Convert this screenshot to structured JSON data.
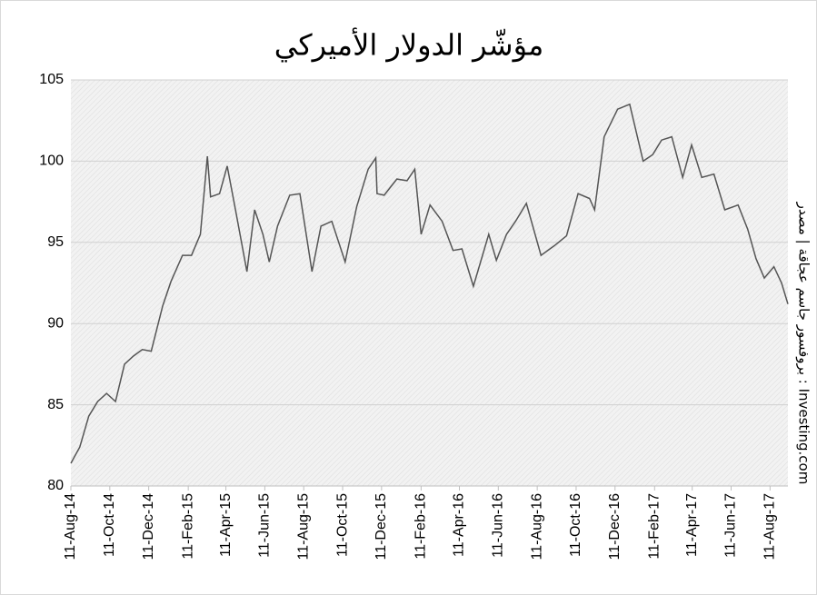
{
  "chart_data": {
    "type": "line",
    "title": "مؤشّر الدولار الأميركي",
    "source": "بروفسور جاسم عجاقة | مصدر : Investing.com",
    "color": "#555555",
    "grid": true,
    "x": [
      "2014-08-11",
      "2014-08-25",
      "2014-09-08",
      "2014-09-22",
      "2014-10-06",
      "2014-10-20",
      "2014-11-03",
      "2014-11-17",
      "2014-12-01",
      "2014-12-15",
      "2015-01-02",
      "2015-01-15",
      "2015-02-02",
      "2015-02-16",
      "2015-03-02",
      "2015-03-13",
      "2015-03-18",
      "2015-04-01",
      "2015-04-13",
      "2015-04-27",
      "2015-05-14",
      "2015-05-26",
      "2015-06-08",
      "2015-06-18",
      "2015-07-01",
      "2015-07-20",
      "2015-08-05",
      "2015-08-24",
      "2015-09-07",
      "2015-09-24",
      "2015-10-15",
      "2015-11-02",
      "2015-11-20",
      "2015-12-02",
      "2015-12-04",
      "2015-12-15",
      "2016-01-04",
      "2016-01-20",
      "2016-02-01",
      "2016-02-11",
      "2016-02-25",
      "2016-03-15",
      "2016-04-01",
      "2016-04-15",
      "2016-05-03",
      "2016-05-27",
      "2016-06-08",
      "2016-06-24",
      "2016-07-08",
      "2016-07-25",
      "2016-08-17",
      "2016-09-07",
      "2016-09-26",
      "2016-10-14",
      "2016-11-01",
      "2016-11-09",
      "2016-11-24",
      "2016-12-15",
      "2017-01-03",
      "2017-01-24",
      "2017-02-08",
      "2017-02-22",
      "2017-03-10",
      "2017-03-27",
      "2017-04-10",
      "2017-04-26",
      "2017-05-15",
      "2017-06-01",
      "2017-06-22",
      "2017-07-07",
      "2017-07-20",
      "2017-08-02",
      "2017-08-17",
      "2017-08-29",
      "2017-09-08"
    ],
    "values": [
      81.4,
      82.4,
      84.3,
      85.2,
      85.7,
      85.2,
      87.5,
      88.0,
      88.4,
      88.3,
      91.1,
      92.6,
      94.2,
      94.2,
      95.5,
      100.3,
      97.8,
      98.0,
      99.7,
      96.8,
      93.2,
      97.0,
      95.5,
      93.8,
      96.0,
      97.9,
      98.0,
      93.2,
      96.0,
      96.3,
      93.8,
      97.2,
      99.5,
      100.2,
      98.0,
      97.9,
      98.9,
      98.8,
      99.5,
      95.5,
      97.3,
      96.3,
      94.5,
      94.6,
      92.3,
      95.5,
      93.9,
      95.5,
      96.3,
      97.4,
      94.2,
      94.8,
      95.4,
      98.0,
      97.7,
      97.0,
      101.5,
      103.2,
      103.5,
      100.0,
      100.4,
      101.3,
      101.5,
      99.0,
      101.0,
      99.0,
      99.2,
      97.0,
      97.3,
      95.8,
      94.0,
      92.8,
      93.5,
      92.5,
      91.2
    ],
    "xlim": [
      "2014-08-11",
      "2017-09-08"
    ],
    "xticks": [
      {
        "value": "2014-08-11",
        "label": "11-Aug-14"
      },
      {
        "value": "2014-10-11",
        "label": "11-Oct-14"
      },
      {
        "value": "2014-12-11",
        "label": "11-Dec-14"
      },
      {
        "value": "2015-02-11",
        "label": "11-Feb-15"
      },
      {
        "value": "2015-04-11",
        "label": "11-Apr-15"
      },
      {
        "value": "2015-06-11",
        "label": "11-Jun-15"
      },
      {
        "value": "2015-08-11",
        "label": "11-Aug-15"
      },
      {
        "value": "2015-10-11",
        "label": "11-Oct-15"
      },
      {
        "value": "2015-12-11",
        "label": "11-Dec-15"
      },
      {
        "value": "2016-02-11",
        "label": "11-Feb-16"
      },
      {
        "value": "2016-04-11",
        "label": "11-Apr-16"
      },
      {
        "value": "2016-06-11",
        "label": "11-Jun-16"
      },
      {
        "value": "2016-08-11",
        "label": "11-Aug-16"
      },
      {
        "value": "2016-10-11",
        "label": "11-Oct-16"
      },
      {
        "value": "2016-12-11",
        "label": "11-Dec-16"
      },
      {
        "value": "2017-02-11",
        "label": "11-Feb-17"
      },
      {
        "value": "2017-04-11",
        "label": "11-Apr-17"
      },
      {
        "value": "2017-06-11",
        "label": "11-Jun-17"
      },
      {
        "value": "2017-08-11",
        "label": "11-Aug-17"
      }
    ],
    "ylim": [
      80,
      105
    ],
    "yticks": [
      80,
      85,
      90,
      95,
      100,
      105
    ]
  }
}
